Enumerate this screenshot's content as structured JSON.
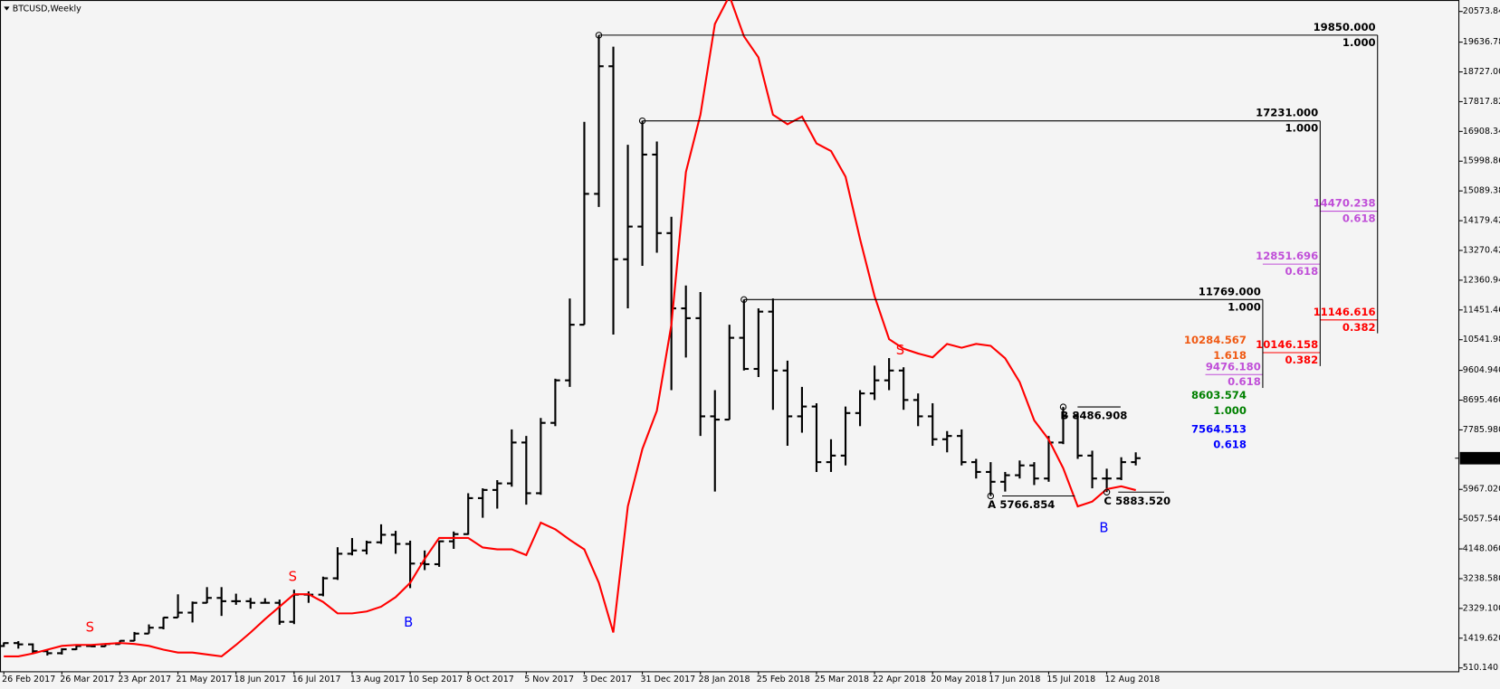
{
  "chart_data": {
    "type": "ohlc",
    "title": "BTCUSD,Weekly",
    "categories": [
      "26 Feb 2017",
      null,
      null,
      null,
      "26 Mar 2017",
      null,
      null,
      null,
      "23 Apr 2017",
      null,
      null,
      null,
      "21 May 2017",
      null,
      null,
      null,
      "18 Jun 2017",
      null,
      null,
      null,
      "16 Jul 2017",
      null,
      null,
      null,
      "13 Aug 2017",
      null,
      null,
      null,
      "10 Sep 2017",
      null,
      null,
      null,
      "8 Oct 2017",
      null,
      null,
      null,
      "5 Nov 2017",
      null,
      null,
      null,
      "3 Dec 2017",
      null,
      null,
      null,
      "31 Dec 2017",
      null,
      null,
      null,
      "28 Jan 2018",
      null,
      null,
      null,
      "25 Feb 2018",
      null,
      null,
      null,
      "25 Mar 2018",
      null,
      null,
      null,
      "22 Apr 2018",
      null,
      null,
      null,
      "20 May 2018",
      null,
      null,
      null,
      "17 Jun 2018",
      null,
      null,
      null,
      "15 Jul 2018",
      null,
      null,
      null,
      "12 Aug 2018",
      null,
      null
    ],
    "ohlc": {
      "color": "#000000",
      "open": [
        1180,
        1270,
        1230,
        1020,
        960,
        1080,
        1180,
        1170,
        1240,
        1340,
        1560,
        1740,
        2050,
        2200,
        2500,
        2650,
        2550,
        2550,
        2500,
        2500,
        1920,
        2750,
        2750,
        3250,
        4000,
        4100,
        4350,
        4580,
        4300,
        3700,
        3680,
        4380,
        4600,
        5700,
        5950,
        6150,
        7400,
        5850,
        8000,
        9300,
        11000,
        15000,
        18900,
        13000,
        14000,
        16200,
        13800,
        11500,
        11200,
        8200,
        8100,
        10600,
        9650,
        11400,
        9600,
        8200,
        8500,
        6800,
        7000,
        8300,
        8900,
        9300,
        9600,
        8700,
        8200,
        7500,
        7600,
        6800,
        6500,
        6200,
        6400,
        6700,
        6300,
        7400,
        8200,
        7000,
        6300,
        6300,
        6800
      ],
      "high": [
        1290,
        1330,
        1260,
        1060,
        1110,
        1210,
        1230,
        1250,
        1350,
        1610,
        1840,
        2060,
        2760,
        2540,
        2980,
        2980,
        2780,
        2650,
        2640,
        2600,
        2900,
        2850,
        3300,
        4200,
        4480,
        4400,
        4900,
        4700,
        4400,
        4100,
        4400,
        4680,
        5850,
        6000,
        6250,
        7800,
        7600,
        8150,
        9350,
        11800,
        17200,
        19850,
        19500,
        16500,
        17231,
        16600,
        14300,
        12200,
        12000,
        9000,
        11000,
        11769,
        11500,
        11800,
        9900,
        9100,
        8600,
        7500,
        8500,
        9000,
        9750,
        9980,
        9700,
        8900,
        8600,
        7750,
        7800,
        6900,
        6800,
        6500,
        6850,
        6800,
        7600,
        8486.908,
        8300,
        7150,
        6600,
        6950,
        7100
      ],
      "low": [
        1150,
        1100,
        950,
        890,
        920,
        1060,
        1150,
        1160,
        1230,
        1330,
        1560,
        1690,
        2050,
        1900,
        2490,
        2100,
        2440,
        2320,
        2480,
        1830,
        1850,
        2500,
        2700,
        3200,
        3950,
        3980,
        4300,
        4000,
        2950,
        3500,
        3600,
        4150,
        4580,
        5100,
        5380,
        6050,
        5500,
        5800,
        7900,
        9100,
        11000,
        14600,
        10700,
        11500,
        12800,
        13200,
        9000,
        10000,
        7600,
        5900,
        8100,
        9600,
        9400,
        8400,
        7300,
        7700,
        6500,
        6500,
        6700,
        7900,
        8700,
        9000,
        8400,
        7900,
        7300,
        7100,
        6700,
        6300,
        5766.854,
        5900,
        6300,
        6100,
        6200,
        7350,
        6900,
        6000,
        5883.52,
        6250,
        6700
      ],
      "close": [
        1270,
        1230,
        1020,
        960,
        1080,
        1180,
        1170,
        1240,
        1340,
        1560,
        1740,
        2050,
        2200,
        2500,
        2650,
        2550,
        2550,
        2500,
        2500,
        1920,
        2750,
        2750,
        3250,
        4000,
        4100,
        4350,
        4580,
        4300,
        3700,
        3680,
        4380,
        4600,
        5700,
        5950,
        6150,
        7400,
        5850,
        8000,
        9300,
        11000,
        15000,
        18900,
        13000,
        14000,
        16200,
        13800,
        11500,
        11200,
        8200,
        8100,
        10600,
        9650,
        11400,
        9600,
        8200,
        8500,
        6800,
        7000,
        8300,
        8900,
        9300,
        9600,
        8700,
        8200,
        7500,
        7600,
        6800,
        6500,
        6200,
        6400,
        6700,
        6300,
        7400,
        8200,
        7000,
        6300,
        6300,
        6800,
        6920.744
      ]
    },
    "lines": [
      {
        "color": "#ff0000",
        "values": [
          864,
          864,
          952,
          1068,
          1185,
          1214,
          1214,
          1243,
          1272,
          1243,
          1185,
          1068,
          980,
          980,
          922,
          864,
          1214,
          1594,
          2003,
          2382,
          2762,
          2762,
          2528,
          2178,
          2178,
          2236,
          2382,
          2674,
          3112,
          3842,
          4485,
          4485,
          4485,
          4193,
          4134,
          4134,
          3959,
          4952,
          4748,
          4426,
          4134,
          3112,
          1594,
          5448,
          7200,
          8368,
          10996,
          15668,
          17420,
          20194,
          21050,
          19815,
          19172,
          17420,
          17128,
          17362,
          16544,
          16311,
          15522,
          13624,
          11872,
          10558,
          10266,
          10120,
          10004,
          10412,
          10296,
          10412,
          10354,
          9974,
          9244,
          8076,
          7492,
          6616,
          5448,
          5594,
          5974,
          6062,
          5945
        ]
      }
    ],
    "ylim": [
      393,
      20924
    ],
    "yticks": [
      {
        "value": 20573.84,
        "label": "20573.840"
      },
      {
        "value": 19636.78,
        "label": "19636.780"
      },
      {
        "value": 18727,
        "label": "18727.000"
      },
      {
        "value": 17817.82,
        "label": "17817.820"
      },
      {
        "value": 16908.34,
        "label": "16908.340"
      },
      {
        "value": 15998.86,
        "label": "15998.860"
      },
      {
        "value": 15089.38,
        "label": "15089.380"
      },
      {
        "value": 14179.42,
        "label": "14179.420"
      },
      {
        "value": 13270.42,
        "label": "13270.420"
      },
      {
        "value": 12360.94,
        "label": "12360.940"
      },
      {
        "value": 11451.46,
        "label": "11451.460"
      },
      {
        "value": 10541.98,
        "label": "10541.980"
      },
      {
        "value": 9604.94,
        "label": "9604.940"
      },
      {
        "value": 8695.46,
        "label": "8695.460"
      },
      {
        "value": 7785.98,
        "label": "7785.980"
      },
      {
        "value": 5967.02,
        "label": "5967.020"
      },
      {
        "value": 5057.54,
        "label": "5057.540"
      },
      {
        "value": 4148.06,
        "label": "4148.060"
      },
      {
        "value": 3238.58,
        "label": "3238.580"
      },
      {
        "value": 2329.1,
        "label": "2329.100"
      },
      {
        "value": 1419.62,
        "label": "1419.620"
      },
      {
        "value": 510.14,
        "label": "510.140"
      }
    ],
    "levels": [
      {
        "price": {
          "value": 19850,
          "label": "19850.000"
        },
        "ratio": {
          "value": 1,
          "label": "1.000"
        },
        "color": "#000000"
      },
      {
        "price": {
          "value": 17231,
          "label": "17231.000"
        },
        "ratio": {
          "value": 1,
          "label": "1.000"
        },
        "color": "#000000"
      },
      {
        "price": {
          "value": 11769,
          "label": "11769.000"
        },
        "ratio": {
          "value": 1,
          "label": "1.000"
        },
        "color": "#000000"
      },
      {
        "price": 14470.238,
        "ratio": 0.618,
        "color": "#c04fd8"
      },
      {
        "price": 12851.696,
        "ratio": 0.618,
        "color": "#c04fd8"
      },
      {
        "price": {
          "value": 9476.18,
          "label": "9476.180"
        },
        "ratio": 0.618,
        "color": "#c04fd8"
      },
      {
        "price": 11146.616,
        "ratio": 0.382,
        "color": "#ff0000"
      },
      {
        "price": 10146.158,
        "ratio": 0.382,
        "color": "#ff0000"
      },
      {
        "price": 10284.567,
        "ratio": 1.618,
        "color": "#f05a14"
      },
      {
        "price": 8603.574,
        "ratio": {
          "value": 1,
          "label": "1.000"
        },
        "color": "#008000"
      },
      {
        "price": 7564.513,
        "ratio": 0.618,
        "color": "#0000ff"
      }
    ],
    "abc": [
      {
        "letter": "A",
        "price": 5766.854
      },
      {
        "letter": "B",
        "price": 8486.908
      },
      {
        "letter": "C",
        "price": {
          "value": 5883.52,
          "label": "5883.520"
        }
      }
    ],
    "annotations": [
      {
        "text": "S",
        "color": "#ff0000"
      },
      {
        "text": "S",
        "color": "#ff0000"
      },
      {
        "text": "B",
        "color": "#0000ff"
      },
      {
        "text": "S",
        "color": "#ff0000"
      },
      {
        "text": "B",
        "color": "#0000ff"
      }
    ]
  }
}
